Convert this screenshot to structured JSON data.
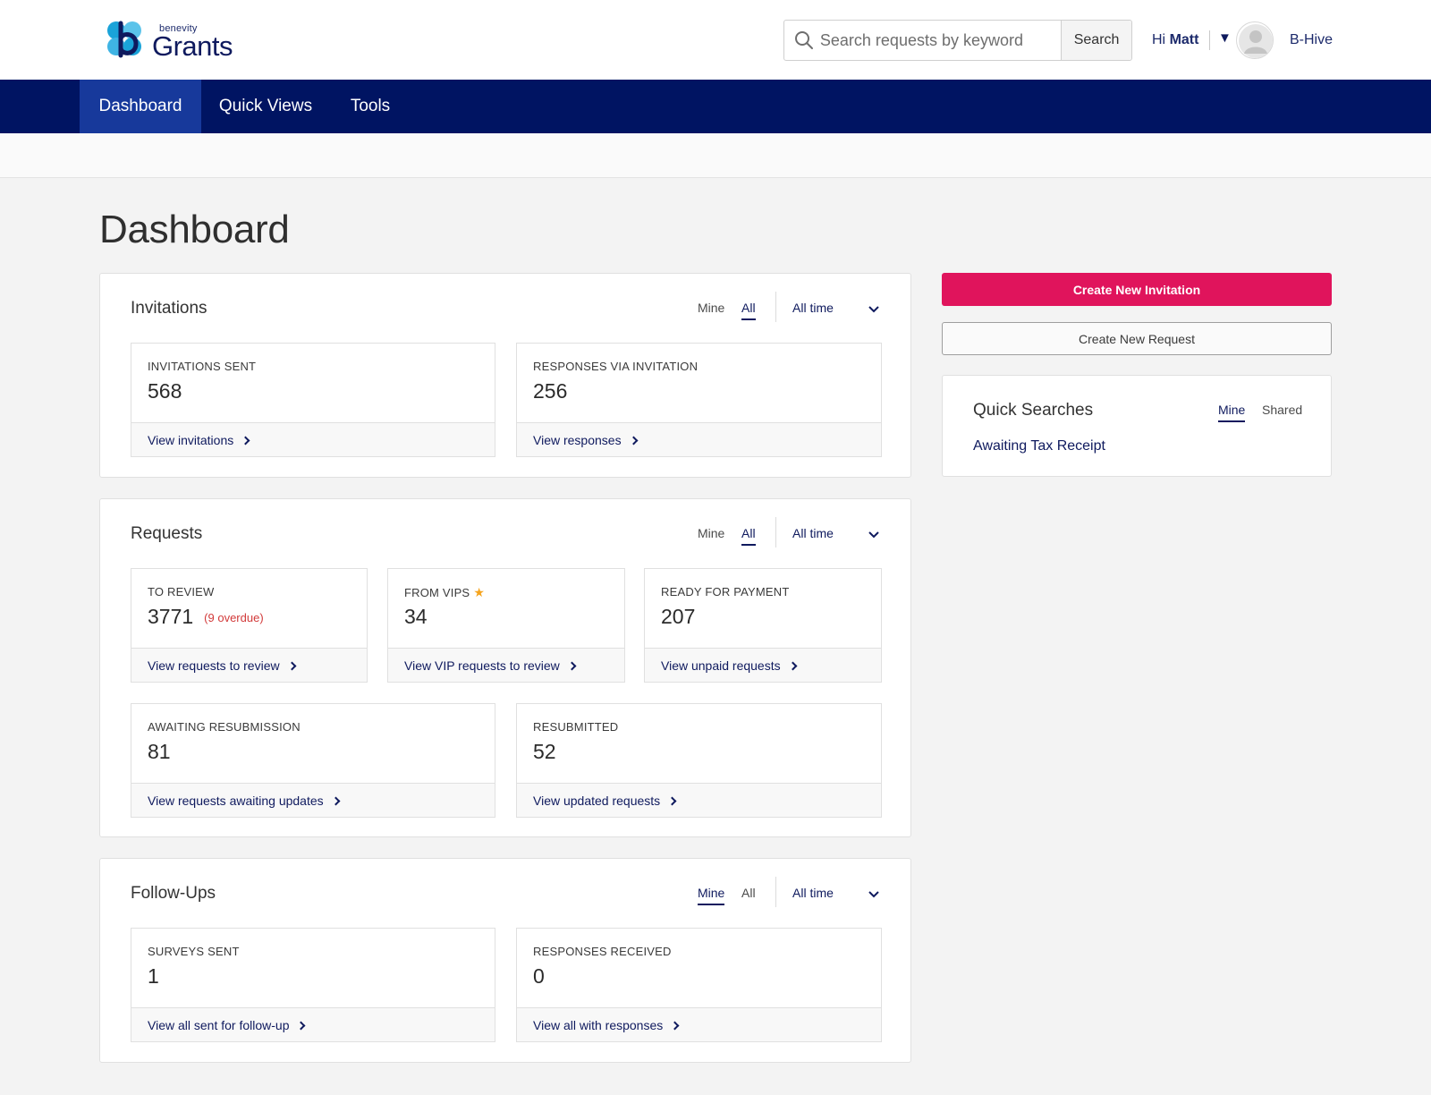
{
  "header": {
    "logo_small": "benevity",
    "logo_big": "Grants",
    "search_placeholder": "Search requests by keyword",
    "search_button": "Search",
    "greeting": "Hi",
    "user_name": "Matt",
    "org_name": "B-Hive"
  },
  "nav": {
    "items": [
      {
        "label": "Dashboard",
        "active": true
      },
      {
        "label": "Quick Views",
        "active": false
      },
      {
        "label": "Tools",
        "active": false
      }
    ]
  },
  "page": {
    "title": "Dashboard"
  },
  "invitations": {
    "title": "Invitations",
    "filter_mine": "Mine",
    "filter_all": "All",
    "time": "All time",
    "cards": [
      {
        "label": "INVITATIONS SENT",
        "value": "568",
        "link": "View invitations"
      },
      {
        "label": "RESPONSES VIA INVITATION",
        "value": "256",
        "link": "View responses"
      }
    ]
  },
  "requests": {
    "title": "Requests",
    "filter_mine": "Mine",
    "filter_all": "All",
    "time": "All time",
    "cards": [
      {
        "label": "TO REVIEW",
        "value": "3771",
        "note": "(9 overdue)",
        "link": "View requests to review"
      },
      {
        "label": "FROM VIPS",
        "value": "34",
        "link": "View VIP requests to review"
      },
      {
        "label": "READY FOR PAYMENT",
        "value": "207",
        "link": "View unpaid requests"
      },
      {
        "label": "AWAITING RESUBMISSION",
        "value": "81",
        "link": "View requests awaiting updates"
      },
      {
        "label": "RESUBMITTED",
        "value": "52",
        "link": "View updated requests"
      }
    ]
  },
  "followups": {
    "title": "Follow-Ups",
    "filter_mine": "Mine",
    "filter_all": "All",
    "time": "All time",
    "cards": [
      {
        "label": "SURVEYS SENT",
        "value": "1",
        "link": "View all sent for follow-up"
      },
      {
        "label": "RESPONSES RECEIVED",
        "value": "0",
        "link": "View all with responses"
      }
    ]
  },
  "actions": {
    "create_invitation": "Create New Invitation",
    "create_request": "Create New Request"
  },
  "quick_searches": {
    "title": "Quick Searches",
    "tab_mine": "Mine",
    "tab_shared": "Shared",
    "items": [
      "Awaiting Tax Receipt"
    ]
  },
  "colors": {
    "nav_bg": "#001462",
    "nav_active": "#17399b",
    "primary_button": "#e0145c",
    "link": "#0f1a5e",
    "overdue": "#d23a3a",
    "star": "#f5a41d"
  }
}
